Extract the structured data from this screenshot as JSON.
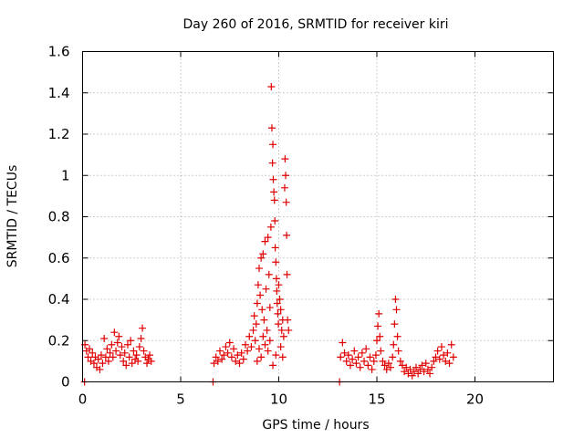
{
  "chart_data": {
    "type": "scatter",
    "title": "Day 260 of 2016, SRMTID for receiver kiri",
    "xlabel": "GPS time / hours",
    "ylabel": "SRMTID / TECUs",
    "xlim": [
      0,
      24
    ],
    "ylim": [
      0,
      1.6
    ],
    "xticks": [
      0,
      5,
      10,
      15,
      20
    ],
    "xtick_labels": [
      "0",
      "5",
      "10",
      "15",
      "20"
    ],
    "yticks": [
      0,
      0.2,
      0.4,
      0.6,
      0.8,
      1,
      1.2,
      1.4,
      1.6
    ],
    "ytick_labels": [
      "0",
      "0.2",
      "0.4",
      "0.6",
      "0.8",
      "1",
      "1.2",
      "1.4",
      "1.6"
    ],
    "grid": true,
    "marker": "plus",
    "marker_color": "#e00000",
    "series": [
      {
        "name": "SRMTID",
        "points": [
          [
            0.1,
            0.0
          ],
          [
            6.65,
            0.0
          ],
          [
            13.1,
            0.0
          ],
          [
            0.12,
            0.18
          ],
          [
            0.2,
            0.15
          ],
          [
            0.28,
            0.12
          ],
          [
            0.35,
            0.16
          ],
          [
            0.42,
            0.1
          ],
          [
            0.5,
            0.14
          ],
          [
            0.58,
            0.09
          ],
          [
            0.65,
            0.12
          ],
          [
            0.72,
            0.07
          ],
          [
            0.8,
            0.11
          ],
          [
            0.88,
            0.06
          ],
          [
            0.95,
            0.13
          ],
          [
            1.02,
            0.09
          ],
          [
            1.1,
            0.21
          ],
          [
            1.18,
            0.12
          ],
          [
            1.25,
            0.16
          ],
          [
            1.32,
            0.1
          ],
          [
            1.4,
            0.14
          ],
          [
            1.48,
            0.18
          ],
          [
            1.55,
            0.12
          ],
          [
            1.62,
            0.24
          ],
          [
            1.7,
            0.15
          ],
          [
            1.78,
            0.19
          ],
          [
            1.85,
            0.22
          ],
          [
            1.92,
            0.13
          ],
          [
            2.0,
            0.17
          ],
          [
            2.08,
            0.1
          ],
          [
            2.15,
            0.14
          ],
          [
            2.22,
            0.08
          ],
          [
            2.3,
            0.18
          ],
          [
            2.38,
            0.12
          ],
          [
            2.45,
            0.2
          ],
          [
            2.52,
            0.09
          ],
          [
            2.6,
            0.15
          ],
          [
            2.68,
            0.11
          ],
          [
            2.75,
            0.13
          ],
          [
            2.82,
            0.1
          ],
          [
            2.9,
            0.17
          ],
          [
            2.98,
            0.21
          ],
          [
            3.05,
            0.26
          ],
          [
            3.12,
            0.15
          ],
          [
            3.2,
            0.12
          ],
          [
            3.28,
            0.09
          ],
          [
            3.35,
            0.11
          ],
          [
            3.42,
            0.13
          ],
          [
            3.5,
            0.1
          ],
          [
            6.7,
            0.09
          ],
          [
            6.8,
            0.12
          ],
          [
            6.9,
            0.1
          ],
          [
            7.0,
            0.15
          ],
          [
            7.1,
            0.11
          ],
          [
            7.2,
            0.13
          ],
          [
            7.3,
            0.17
          ],
          [
            7.4,
            0.14
          ],
          [
            7.5,
            0.19
          ],
          [
            7.6,
            0.12
          ],
          [
            7.7,
            0.16
          ],
          [
            7.8,
            0.1
          ],
          [
            7.9,
            0.13
          ],
          [
            8.0,
            0.09
          ],
          [
            8.1,
            0.14
          ],
          [
            8.2,
            0.11
          ],
          [
            8.3,
            0.18
          ],
          [
            8.4,
            0.15
          ],
          [
            8.5,
            0.22
          ],
          [
            8.6,
            0.17
          ],
          [
            8.7,
            0.25
          ],
          [
            8.75,
            0.32
          ],
          [
            8.8,
            0.2
          ],
          [
            8.85,
            0.28
          ],
          [
            8.9,
            0.38
          ],
          [
            8.95,
            0.47
          ],
          [
            9.0,
            0.55
          ],
          [
            9.05,
            0.42
          ],
          [
            9.1,
            0.6
          ],
          [
            9.15,
            0.35
          ],
          [
            9.2,
            0.62
          ],
          [
            9.25,
            0.3
          ],
          [
            9.3,
            0.68
          ],
          [
            9.35,
            0.45
          ],
          [
            9.4,
            0.25
          ],
          [
            9.45,
            0.7
          ],
          [
            9.5,
            0.52
          ],
          [
            9.55,
            0.36
          ],
          [
            9.6,
            0.75
          ],
          [
            9.62,
            1.43
          ],
          [
            9.65,
            1.23
          ],
          [
            9.68,
            1.06
          ],
          [
            9.7,
            1.15
          ],
          [
            9.72,
            0.98
          ],
          [
            9.75,
            0.92
          ],
          [
            9.78,
            0.88
          ],
          [
            9.8,
            0.78
          ],
          [
            9.82,
            0.65
          ],
          [
            9.85,
            0.58
          ],
          [
            9.88,
            0.5
          ],
          [
            9.9,
            0.44
          ],
          [
            9.92,
            0.38
          ],
          [
            9.95,
            0.33
          ],
          [
            9.98,
            0.28
          ],
          [
            10.0,
            0.47
          ],
          [
            10.05,
            0.4
          ],
          [
            10.1,
            0.35
          ],
          [
            10.15,
            0.25
          ],
          [
            10.2,
            0.3
          ],
          [
            10.25,
            0.22
          ],
          [
            10.3,
            0.94
          ],
          [
            10.32,
            1.08
          ],
          [
            10.35,
            1.0
          ],
          [
            10.38,
            0.87
          ],
          [
            10.4,
            0.71
          ],
          [
            10.42,
            0.52
          ],
          [
            10.45,
            0.3
          ],
          [
            10.5,
            0.25
          ],
          [
            9.55,
            0.2
          ],
          [
            9.45,
            0.15
          ],
          [
            9.3,
            0.18
          ],
          [
            9.2,
            0.22
          ],
          [
            9.1,
            0.12
          ],
          [
            9.0,
            0.16
          ],
          [
            8.9,
            0.1
          ],
          [
            9.7,
            0.08
          ],
          [
            9.85,
            0.13
          ],
          [
            10.1,
            0.17
          ],
          [
            10.2,
            0.12
          ],
          [
            13.15,
            0.12
          ],
          [
            13.25,
            0.19
          ],
          [
            13.35,
            0.14
          ],
          [
            13.45,
            0.1
          ],
          [
            13.55,
            0.13
          ],
          [
            13.65,
            0.08
          ],
          [
            13.75,
            0.11
          ],
          [
            13.85,
            0.15
          ],
          [
            13.95,
            0.09
          ],
          [
            14.05,
            0.12
          ],
          [
            14.15,
            0.07
          ],
          [
            14.25,
            0.14
          ],
          [
            14.35,
            0.1
          ],
          [
            14.45,
            0.16
          ],
          [
            14.55,
            0.08
          ],
          [
            14.65,
            0.12
          ],
          [
            14.75,
            0.06
          ],
          [
            14.85,
            0.1
          ],
          [
            14.95,
            0.13
          ],
          [
            15.0,
            0.2
          ],
          [
            15.05,
            0.27
          ],
          [
            15.1,
            0.33
          ],
          [
            15.15,
            0.22
          ],
          [
            15.2,
            0.15
          ],
          [
            15.3,
            0.1
          ],
          [
            15.4,
            0.08
          ],
          [
            15.5,
            0.06
          ],
          [
            15.6,
            0.09
          ],
          [
            15.7,
            0.07
          ],
          [
            15.8,
            0.12
          ],
          [
            15.85,
            0.18
          ],
          [
            15.9,
            0.28
          ],
          [
            15.95,
            0.4
          ],
          [
            16.0,
            0.35
          ],
          [
            16.05,
            0.22
          ],
          [
            16.1,
            0.15
          ],
          [
            16.2,
            0.1
          ],
          [
            16.3,
            0.08
          ],
          [
            16.4,
            0.05
          ],
          [
            16.5,
            0.07
          ],
          [
            16.6,
            0.04
          ],
          [
            16.7,
            0.06
          ],
          [
            16.8,
            0.03
          ],
          [
            16.9,
            0.05
          ],
          [
            17.0,
            0.07
          ],
          [
            17.1,
            0.04
          ],
          [
            17.2,
            0.06
          ],
          [
            17.3,
            0.08
          ],
          [
            17.4,
            0.05
          ],
          [
            17.5,
            0.09
          ],
          [
            17.6,
            0.06
          ],
          [
            17.7,
            0.04
          ],
          [
            17.8,
            0.07
          ],
          [
            17.9,
            0.1
          ],
          [
            18.0,
            0.12
          ],
          [
            18.1,
            0.15
          ],
          [
            18.2,
            0.11
          ],
          [
            18.3,
            0.17
          ],
          [
            18.4,
            0.13
          ],
          [
            18.5,
            0.1
          ],
          [
            18.6,
            0.14
          ],
          [
            18.7,
            0.09
          ],
          [
            18.8,
            0.18
          ],
          [
            18.9,
            0.12
          ]
        ]
      }
    ]
  }
}
